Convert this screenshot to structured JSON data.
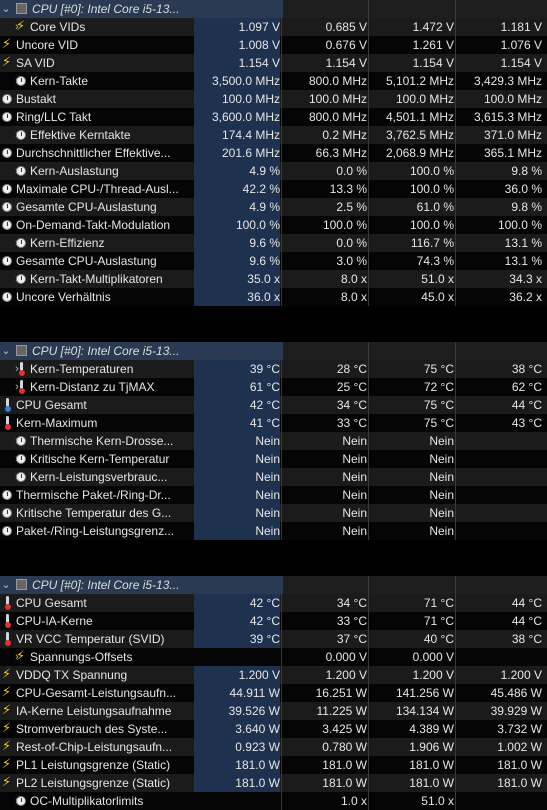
{
  "sections": [
    {
      "title": "CPU [#0]: Intel Core i5-13...",
      "rows": [
        {
          "label": "Core VIDs",
          "icon": "bolt",
          "chevron": true,
          "indent": 1,
          "values": [
            "1.097 V",
            "0.685 V",
            "1.472 V",
            "1.181 V"
          ]
        },
        {
          "label": "Uncore VID",
          "icon": "bolt",
          "chevron": false,
          "indent": 0,
          "values": [
            "1.008 V",
            "0.676 V",
            "1.261 V",
            "1.076 V"
          ]
        },
        {
          "label": "SA VID",
          "icon": "bolt",
          "chevron": false,
          "indent": 0,
          "values": [
            "1.154 V",
            "1.154 V",
            "1.154 V",
            "1.154 V"
          ]
        },
        {
          "label": "Kern-Takte",
          "icon": "clock",
          "chevron": true,
          "indent": 1,
          "values": [
            "3,500.0 MHz",
            "800.0 MHz",
            "5,101.2 MHz",
            "3,429.3 MHz"
          ]
        },
        {
          "label": "Bustakt",
          "icon": "clock",
          "chevron": false,
          "indent": 0,
          "values": [
            "100.0 MHz",
            "100.0 MHz",
            "100.0 MHz",
            "100.0 MHz"
          ]
        },
        {
          "label": "Ring/LLC Takt",
          "icon": "clock",
          "chevron": false,
          "indent": 0,
          "values": [
            "3,600.0 MHz",
            "800.0 MHz",
            "4,501.1 MHz",
            "3,615.3 MHz"
          ]
        },
        {
          "label": "Effektive Kerntakte",
          "icon": "clock",
          "chevron": true,
          "indent": 1,
          "values": [
            "174.4 MHz",
            "0.2 MHz",
            "3,762.5 MHz",
            "371.0 MHz"
          ]
        },
        {
          "label": "Durchschnittlicher Effektive...",
          "icon": "clock",
          "chevron": false,
          "indent": 0,
          "values": [
            "201.6 MHz",
            "66.3 MHz",
            "2,068.9 MHz",
            "365.1 MHz"
          ]
        },
        {
          "label": "Kern-Auslastung",
          "icon": "clock",
          "chevron": true,
          "indent": 1,
          "values": [
            "4.9 %",
            "0.0 %",
            "100.0 %",
            "9.8 %"
          ]
        },
        {
          "label": "Maximale CPU-/Thread-Ausl...",
          "icon": "clock",
          "chevron": false,
          "indent": 0,
          "values": [
            "42.2 %",
            "13.3 %",
            "100.0 %",
            "36.0 %"
          ]
        },
        {
          "label": "Gesamte CPU-Auslastung",
          "icon": "clock",
          "chevron": false,
          "indent": 0,
          "values": [
            "4.9 %",
            "2.5 %",
            "61.0 %",
            "9.8 %"
          ]
        },
        {
          "label": "On-Demand-Takt-Modulation",
          "icon": "clock",
          "chevron": false,
          "indent": 0,
          "values": [
            "100.0 %",
            "100.0 %",
            "100.0 %",
            "100.0 %"
          ]
        },
        {
          "label": "Kern-Effizienz",
          "icon": "clock",
          "chevron": true,
          "indent": 1,
          "values": [
            "9.6 %",
            "0.0 %",
            "116.7 %",
            "13.1 %"
          ]
        },
        {
          "label": "Gesamte CPU-Auslastung",
          "icon": "clock",
          "chevron": false,
          "indent": 0,
          "values": [
            "9.6 %",
            "3.0 %",
            "74.3 %",
            "13.1 %"
          ]
        },
        {
          "label": "Kern-Takt-Multiplikatoren",
          "icon": "clock",
          "chevron": true,
          "indent": 1,
          "values": [
            "35.0 x",
            "8.0 x",
            "51.0 x",
            "34.3 x"
          ]
        },
        {
          "label": "Uncore Verhältnis",
          "icon": "clock",
          "chevron": false,
          "indent": 0,
          "values": [
            "36.0 x",
            "8.0 x",
            "45.0 x",
            "36.2 x"
          ]
        }
      ]
    },
    {
      "title": "CPU [#0]: Intel Core i5-13...",
      "rows": [
        {
          "label": "Kern-Temperaturen",
          "icon": "therm",
          "chevron": true,
          "indent": 1,
          "values": [
            "39 °C",
            "28 °C",
            "75 °C",
            "38 °C"
          ]
        },
        {
          "label": "Kern-Distanz zu TjMAX",
          "icon": "therm",
          "chevron": true,
          "indent": 1,
          "values": [
            "61 °C",
            "25 °C",
            "72 °C",
            "62 °C"
          ]
        },
        {
          "label": "CPU Gesamt",
          "icon": "therm-blue",
          "chevron": false,
          "indent": 0,
          "values": [
            "42 °C",
            "34 °C",
            "75 °C",
            "44 °C"
          ]
        },
        {
          "label": "Kern-Maximum",
          "icon": "therm",
          "chevron": false,
          "indent": 0,
          "values": [
            "41 °C",
            "33 °C",
            "75 °C",
            "43 °C"
          ]
        },
        {
          "label": "Thermische Kern-Drosse...",
          "icon": "clock",
          "chevron": true,
          "indent": 1,
          "values": [
            "Nein",
            "Nein",
            "Nein",
            ""
          ]
        },
        {
          "label": "Kritische Kern-Temperatur",
          "icon": "clock",
          "chevron": true,
          "indent": 1,
          "values": [
            "Nein",
            "Nein",
            "Nein",
            ""
          ]
        },
        {
          "label": "Kern-Leistungsverbrauc...",
          "icon": "clock",
          "chevron": true,
          "indent": 1,
          "values": [
            "Nein",
            "Nein",
            "Nein",
            ""
          ]
        },
        {
          "label": "Thermische Paket-/Ring-Dr...",
          "icon": "clock",
          "chevron": false,
          "indent": 0,
          "values": [
            "Nein",
            "Nein",
            "Nein",
            ""
          ]
        },
        {
          "label": "Kritische Temperatur des G...",
          "icon": "clock",
          "chevron": false,
          "indent": 0,
          "values": [
            "Nein",
            "Nein",
            "Nein",
            ""
          ]
        },
        {
          "label": "Paket-/Ring-Leistungsgrenz...",
          "icon": "clock",
          "chevron": false,
          "indent": 0,
          "values": [
            "Nein",
            "Nein",
            "Nein",
            ""
          ]
        }
      ]
    },
    {
      "title": "CPU [#0]: Intel Core i5-13...",
      "rows": [
        {
          "label": "CPU Gesamt",
          "icon": "therm",
          "chevron": false,
          "indent": 0,
          "values": [
            "42 °C",
            "34 °C",
            "71 °C",
            "44 °C"
          ]
        },
        {
          "label": "CPU-IA-Kerne",
          "icon": "therm",
          "chevron": false,
          "indent": 0,
          "values": [
            "42 °C",
            "33 °C",
            "71 °C",
            "44 °C"
          ]
        },
        {
          "label": "VR VCC Temperatur (SVID)",
          "icon": "therm",
          "chevron": false,
          "indent": 0,
          "values": [
            "39 °C",
            "37 °C",
            "40 °C",
            "38 °C"
          ]
        },
        {
          "label": "Spannungs-Offsets",
          "icon": "bolt",
          "chevron": true,
          "indent": 1,
          "values": [
            "",
            "0.000 V",
            "0.000 V",
            ""
          ]
        },
        {
          "label": "VDDQ TX Spannung",
          "icon": "bolt",
          "chevron": false,
          "indent": 0,
          "values": [
            "1.200 V",
            "1.200 V",
            "1.200 V",
            "1.200 V"
          ]
        },
        {
          "label": "CPU-Gesamt-Leistungsaufn...",
          "icon": "bolt",
          "chevron": false,
          "indent": 0,
          "values": [
            "44.911 W",
            "16.251 W",
            "141.256 W",
            "45.486 W"
          ]
        },
        {
          "label": "IA-Kerne Leistungsaufnahme",
          "icon": "bolt",
          "chevron": false,
          "indent": 0,
          "values": [
            "39.526 W",
            "11.225 W",
            "134.134 W",
            "39.929 W"
          ]
        },
        {
          "label": "Stromverbrauch des Syste...",
          "icon": "bolt",
          "chevron": false,
          "indent": 0,
          "values": [
            "3.640 W",
            "3.425 W",
            "4.389 W",
            "3.732 W"
          ]
        },
        {
          "label": "Rest-of-Chip-Leistungsaufn...",
          "icon": "bolt",
          "chevron": false,
          "indent": 0,
          "values": [
            "0.923 W",
            "0.780 W",
            "1.906 W",
            "1.002 W"
          ]
        },
        {
          "label": "PL1 Leistungsgrenze (Static)",
          "icon": "bolt",
          "chevron": false,
          "indent": 0,
          "values": [
            "181.0 W",
            "181.0 W",
            "181.0 W",
            "181.0 W"
          ]
        },
        {
          "label": "PL2 Leistungsgrenze (Static)",
          "icon": "bolt",
          "chevron": false,
          "indent": 0,
          "values": [
            "181.0 W",
            "181.0 W",
            "181.0 W",
            "181.0 W"
          ]
        },
        {
          "label": "OC-Multiplikatorlimits",
          "icon": "clock",
          "chevron": true,
          "indent": 1,
          "values": [
            "",
            "1.0 x",
            "51.0 x",
            ""
          ]
        }
      ]
    }
  ]
}
